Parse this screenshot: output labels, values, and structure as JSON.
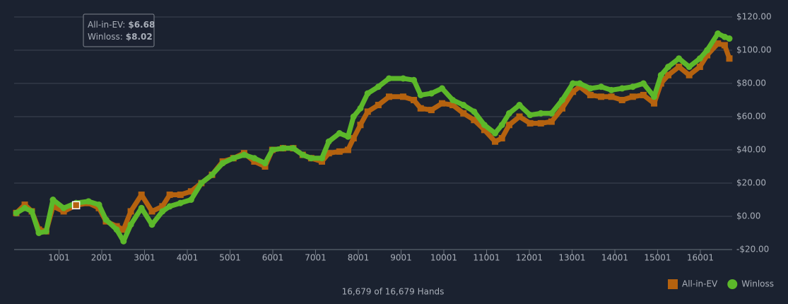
{
  "chart_data": {
    "type": "line",
    "x": [
      1,
      200,
      365,
      530,
      700,
      860,
      1110,
      1400,
      1690,
      1935,
      2100,
      2350,
      2510,
      2680,
      2930,
      3175,
      3420,
      3590,
      3840,
      4090,
      4330,
      4580,
      4830,
      5080,
      5330,
      5570,
      5820,
      5990,
      6240,
      6480,
      6700,
      6900,
      7150,
      7310,
      7560,
      7760,
      7890,
      8050,
      8220,
      8470,
      8720,
      9050,
      9300,
      9460,
      9710,
      9960,
      10210,
      10460,
      10710,
      10950,
      11200,
      11360,
      11530,
      11770,
      12020,
      12270,
      12520,
      12770,
      13020,
      13180,
      13430,
      13680,
      13920,
      14170,
      14420,
      14670,
      14920,
      15080,
      15250,
      15500,
      15740,
      15990,
      16160,
      16410,
      16570,
      16679
    ],
    "series": [
      {
        "name": "All-in-EV",
        "color": "#b5620f",
        "marker": "square",
        "values": [
          2,
          7,
          3,
          -8,
          -9,
          6,
          3,
          6.68,
          8,
          5,
          -3,
          -6,
          -8,
          3,
          13,
          3,
          6,
          13,
          13,
          15,
          20,
          25,
          33,
          35,
          38,
          33,
          30,
          40,
          41,
          41,
          37,
          35,
          33,
          38,
          39,
          40,
          47,
          55,
          63,
          67,
          72,
          72,
          70,
          65,
          64,
          68,
          67,
          62,
          58,
          52,
          45,
          47,
          55,
          60,
          56,
          56,
          57,
          65,
          75,
          78,
          73,
          72,
          72,
          70,
          72,
          73,
          68,
          80,
          85,
          90,
          85,
          90,
          97,
          104,
          103,
          95
        ]
      },
      {
        "name": "Winloss",
        "color": "#5cb82a",
        "marker": "circle",
        "values": [
          2,
          5,
          3,
          -10,
          -9,
          10,
          5,
          8.02,
          9,
          7,
          -2,
          -8,
          -15,
          -5,
          5,
          -5,
          3,
          6,
          8,
          10,
          20,
          25,
          32,
          35,
          37,
          35,
          32,
          40,
          41,
          41,
          37,
          35,
          35,
          45,
          50,
          48,
          60,
          65,
          74,
          78,
          83,
          83,
          82,
          73,
          74,
          77,
          70,
          67,
          63,
          55,
          50,
          55,
          62,
          67,
          61,
          62,
          62,
          70,
          80,
          80,
          77,
          78,
          76,
          77,
          78,
          80,
          72,
          85,
          90,
          95,
          90,
          95,
          100,
          110,
          108,
          107
        ]
      }
    ],
    "xlim": [
      1,
      16679
    ],
    "xticks": [
      1001,
      2001,
      3001,
      4001,
      5001,
      6001,
      7001,
      8001,
      9001,
      10001,
      11001,
      12001,
      13001,
      14001,
      15001,
      16001
    ],
    "ylim": [
      -20,
      120
    ],
    "yticks": [
      {
        "value": -20,
        "label": "-$20.00"
      },
      {
        "value": 0,
        "label": "$0.00"
      },
      {
        "value": 20,
        "label": "$20.00"
      },
      {
        "value": 40,
        "label": "$40.00"
      },
      {
        "value": 60,
        "label": "$60.00"
      },
      {
        "value": 80,
        "label": "$80.00"
      },
      {
        "value": 100,
        "label": "$100.00"
      },
      {
        "value": 120,
        "label": "$120.00"
      }
    ],
    "grid": true,
    "legend": "bottom-right",
    "tooltip": [
      {
        "label": "All-in-EV:",
        "value": 6.68,
        "value_label": "$6.68"
      },
      {
        "label": "Winloss:",
        "value": 8.02,
        "value_label": "$8.02"
      }
    ],
    "footer": "16,679 of 16,679 Hands"
  }
}
